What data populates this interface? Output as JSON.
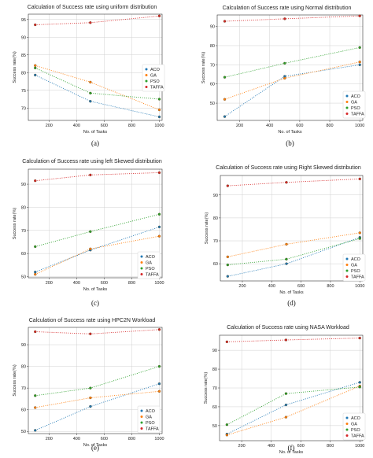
{
  "chart_data": [
    {
      "type": "line",
      "title": "Calculation of Success rate using uniform distribution",
      "xlabel": "No. of Tasks",
      "ylabel": "Success rate(%)",
      "caption": "(a)",
      "x": [
        100,
        500,
        1000
      ],
      "xlim": [
        50,
        1020
      ],
      "ylim": [
        66.5,
        96.5
      ],
      "xticks": [
        200,
        400,
        600,
        800,
        1000
      ],
      "yticks": [
        70,
        75,
        80,
        85,
        90,
        95
      ],
      "grid": true,
      "legend": "center-right",
      "series": [
        {
          "name": "ACO",
          "color": "#1f77b4",
          "values": [
            79.3,
            71.9,
            67.5
          ]
        },
        {
          "name": "GA",
          "color": "#ff7f0e",
          "values": [
            82.0,
            77.3,
            69.5
          ]
        },
        {
          "name": "PSO",
          "color": "#2ca02c",
          "values": [
            81.3,
            74.2,
            72.5
          ]
        },
        {
          "name": "TAFFA",
          "color": "#d62728",
          "values": [
            93.5,
            94.1,
            96.0
          ]
        }
      ]
    },
    {
      "type": "line",
      "title": "Calculation of Success rate using Normal distribution",
      "xlabel": "No. of Tasks",
      "ylabel": "Success rate(%)",
      "caption": "(b)",
      "x": [
        100,
        500,
        1000
      ],
      "xlim": [
        50,
        1020
      ],
      "ylim": [
        41,
        96
      ],
      "xticks": [
        200,
        400,
        600,
        800,
        1000
      ],
      "yticks": [
        50,
        60,
        70,
        80,
        90
      ],
      "grid": true,
      "legend": "bottom-right",
      "series": [
        {
          "name": "ACO",
          "color": "#1f77b4",
          "values": [
            43.0,
            64.0,
            70.0
          ]
        },
        {
          "name": "GA",
          "color": "#ff7f0e",
          "values": [
            52.0,
            63.0,
            71.5
          ]
        },
        {
          "name": "PSO",
          "color": "#2ca02c",
          "values": [
            63.5,
            70.8,
            79.0
          ]
        },
        {
          "name": "TAFFA",
          "color": "#d62728",
          "values": [
            92.7,
            94.0,
            95.5
          ]
        }
      ]
    },
    {
      "type": "line",
      "title": "Calculation of Success rate using left Skewed distribution",
      "xlabel": "No. of Tasks",
      "ylabel": "Success rate(%)",
      "caption": "(c)",
      "x": [
        100,
        500,
        1000
      ],
      "xlim": [
        50,
        1020
      ],
      "ylim": [
        49.5,
        96.5
      ],
      "xticks": [
        200,
        400,
        600,
        800,
        1000
      ],
      "yticks": [
        50,
        60,
        70,
        80,
        90
      ],
      "grid": true,
      "legend": "bottom-right",
      "series": [
        {
          "name": "ACO",
          "color": "#1f77b4",
          "values": [
            52.0,
            61.5,
            71.5
          ]
        },
        {
          "name": "GA",
          "color": "#ff7f0e",
          "values": [
            51.0,
            62.0,
            67.5
          ]
        },
        {
          "name": "PSO",
          "color": "#2ca02c",
          "values": [
            63.0,
            69.5,
            77.0
          ]
        },
        {
          "name": "TAFFA",
          "color": "#d62728",
          "values": [
            91.5,
            94.0,
            95.0
          ]
        }
      ]
    },
    {
      "type": "line",
      "title": "Calculation of Success rate using Right Skewed distribution",
      "xlabel": "No. of Tasks",
      "ylabel": "Success rate(%)",
      "caption": "(d)",
      "x": [
        100,
        500,
        1000
      ],
      "xlim": [
        50,
        1020
      ],
      "ylim": [
        52.5,
        98.5
      ],
      "xticks": [
        200,
        400,
        600,
        800,
        1000
      ],
      "yticks": [
        60,
        70,
        80,
        90
      ],
      "grid": true,
      "legend": "bottom-right",
      "series": [
        {
          "name": "ACO",
          "color": "#1f77b4",
          "values": [
            54.5,
            60.0,
            71.5
          ]
        },
        {
          "name": "GA",
          "color": "#ff7f0e",
          "values": [
            63.0,
            68.5,
            73.5
          ]
        },
        {
          "name": "PSO",
          "color": "#2ca02c",
          "values": [
            59.5,
            62.0,
            71.0
          ]
        },
        {
          "name": "TAFFA",
          "color": "#d62728",
          "values": [
            94.0,
            95.5,
            97.0
          ]
        }
      ]
    },
    {
      "type": "line",
      "title": "Calculation of Success rate using HPC2N Workload",
      "xlabel": "No. of Tasks",
      "ylabel": "Success rate(%)",
      "caption": "(e)",
      "x": [
        100,
        500,
        1000
      ],
      "xlim": [
        50,
        1020
      ],
      "ylim": [
        49,
        98
      ],
      "xticks": [
        200,
        400,
        600,
        800,
        1000
      ],
      "yticks": [
        50,
        60,
        70,
        80,
        90
      ],
      "grid": true,
      "legend": "bottom-right",
      "series": [
        {
          "name": "ACO",
          "color": "#1f77b4",
          "values": [
            50.5,
            61.5,
            72.0
          ]
        },
        {
          "name": "GA",
          "color": "#ff7f0e",
          "values": [
            61.0,
            65.5,
            68.5
          ]
        },
        {
          "name": "PSO",
          "color": "#2ca02c",
          "values": [
            66.5,
            70.0,
            80.0
          ]
        },
        {
          "name": "TAFFA",
          "color": "#d62728",
          "values": [
            96.0,
            95.0,
            97.0
          ]
        }
      ]
    },
    {
      "type": "line",
      "title": "Calculation of Success rate using NASA Workload",
      "xlabel": "No. of Tasks",
      "ylabel": "Success rate(%)",
      "caption": "(f)",
      "x": [
        100,
        500,
        1000
      ],
      "xlim": [
        50,
        1020
      ],
      "ylim": [
        42,
        98
      ],
      "xticks": [
        200,
        400,
        600,
        800,
        1000
      ],
      "yticks": [
        50,
        60,
        70,
        80,
        90
      ],
      "grid": true,
      "legend": "bottom-right",
      "series": [
        {
          "name": "ACO",
          "color": "#1f77b4",
          "values": [
            45.5,
            61.0,
            73.0
          ]
        },
        {
          "name": "GA",
          "color": "#ff7f0e",
          "values": [
            45.0,
            54.5,
            71.0
          ]
        },
        {
          "name": "PSO",
          "color": "#2ca02c",
          "values": [
            50.5,
            67.0,
            70.5
          ]
        },
        {
          "name": "TAFFA",
          "color": "#d62728",
          "values": [
            94.5,
            95.5,
            96.5
          ]
        }
      ]
    }
  ]
}
